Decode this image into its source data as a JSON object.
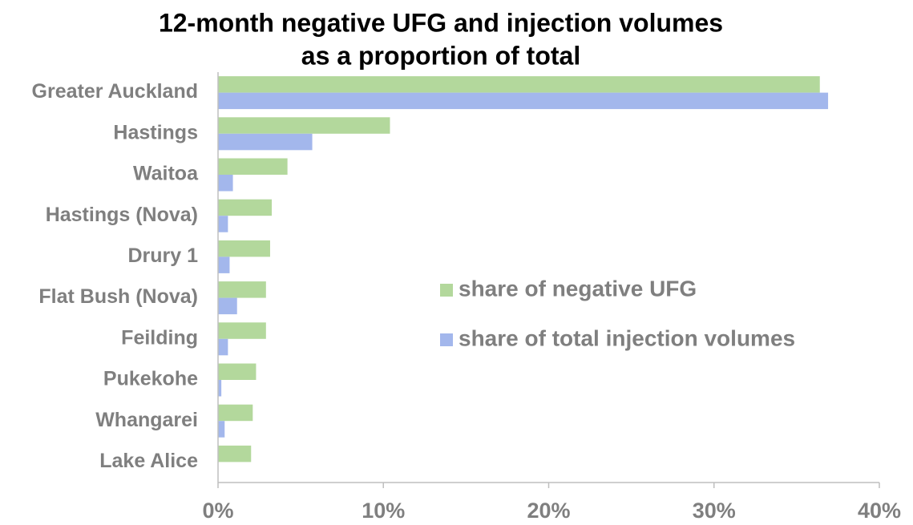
{
  "chart_data": {
    "type": "bar",
    "orientation": "horizontal",
    "title": [
      "12-month negative UFG and injection volumes",
      "as a proportion of total"
    ],
    "categories": [
      "Greater Auckland",
      "Hastings",
      "Waitoa",
      "Hastings (Nova)",
      "Drury 1",
      "Flat Bush (Nova)",
      "Feilding",
      "Pukekohe",
      "Whangarei",
      "Lake Alice"
    ],
    "series": [
      {
        "name": "share of negative UFG",
        "color": "#b3d89c",
        "values": [
          36.4,
          10.4,
          4.2,
          3.25,
          3.15,
          2.9,
          2.9,
          2.3,
          2.1,
          2.0
        ]
      },
      {
        "name": "share of total injection volumes",
        "color": "#a3b7ec",
        "values": [
          36.9,
          5.7,
          0.9,
          0.6,
          0.7,
          1.15,
          0.6,
          0.2,
          0.4,
          0
        ]
      }
    ],
    "xlim": [
      0,
      40
    ],
    "xticks": [
      {
        "value": 0,
        "label": "0%"
      },
      {
        "value": 10,
        "label": "10%"
      },
      {
        "value": 20,
        "label": "20%"
      },
      {
        "value": 30,
        "label": "30%"
      },
      {
        "value": 40,
        "label": "40%"
      }
    ],
    "legend": "center-right"
  }
}
